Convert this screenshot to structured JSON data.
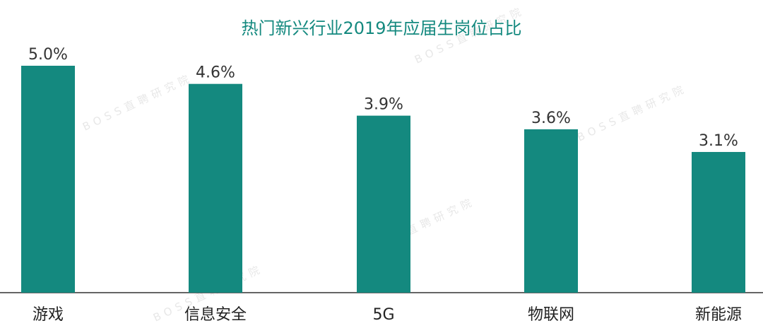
{
  "chart_data": {
    "type": "bar",
    "title": "热门新兴行业2019年应届生岗位占比",
    "categories": [
      "游戏",
      "信息安全",
      "5G",
      "物联网",
      "新能源"
    ],
    "values": [
      5.0,
      4.6,
      3.9,
      3.6,
      3.1
    ],
    "value_labels": [
      "5.0%",
      "4.6%",
      "3.9%",
      "3.6%",
      "3.1%"
    ],
    "unit": "%",
    "xlabel": "",
    "ylabel": "",
    "ylim": [
      0,
      5.0
    ],
    "grid": false,
    "legend": "none",
    "bar_color": "#14897f",
    "title_color": "#14897f",
    "axis_color": "#333333"
  },
  "watermark": {
    "text": "BOSS直聘研究院"
  }
}
